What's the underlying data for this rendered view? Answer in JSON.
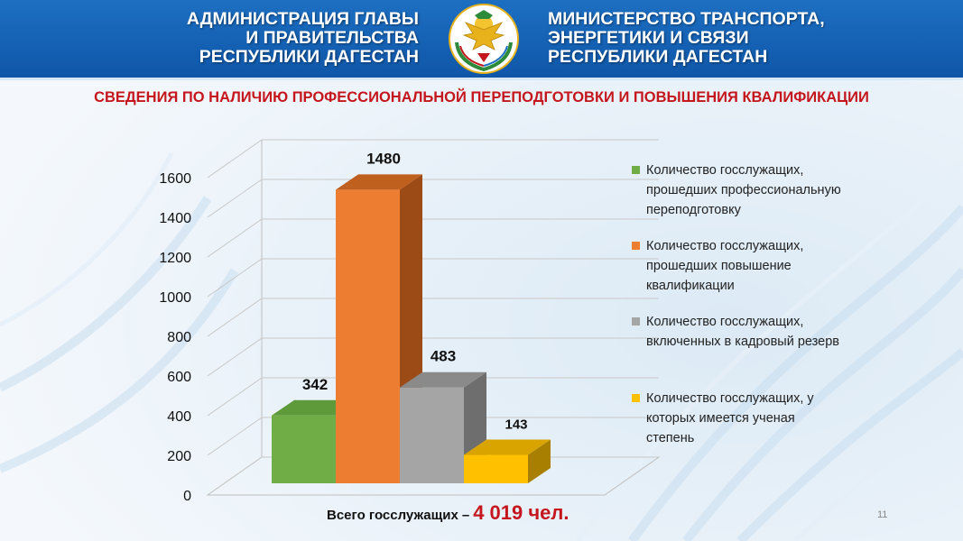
{
  "header": {
    "left_lines": [
      "АДМИНИСТРАЦИЯ ГЛАВЫ",
      "И ПРАВИТЕЛЬСТВА",
      "РЕСПУБЛИКИ ДАГЕСТАН"
    ],
    "right_lines": [
      "МИНИСТЕРСТВО ТРАНСПОРТА,",
      "ЭНЕРГЕТИКИ И СВЯЗИ",
      "РЕСПУБЛИКИ ДАГЕСТАН"
    ],
    "emblem_icon": "dagestan-coat-of-arms-icon"
  },
  "subtitle": "СВЕДЕНИЯ ПО НАЛИЧИЮ ПРОФЕССИОНАЛЬНОЙ ПЕРЕПОДГОТОВКИ И ПОВЫШЕНИЯ КВАЛИФИКАЦИИ",
  "chart_data": {
    "type": "bar",
    "style": "3d-column",
    "title": "",
    "xlabel": "",
    "ylabel": "",
    "ylim": [
      0,
      1600
    ],
    "yticks": [
      0,
      200,
      400,
      600,
      800,
      1000,
      1200,
      1400,
      1600
    ],
    "grid": true,
    "legend_position": "right",
    "series": [
      {
        "name": "Количество госслужащих, прошедших профессиональную переподготовку",
        "value": 342,
        "label": "342",
        "color": "#70ad47",
        "side_color": "#4e7e31",
        "top_color": "#5e9a3a"
      },
      {
        "name": "Количество госслужащих, прошедших повышение квалификации",
        "value": 1480,
        "label": "1480",
        "color": "#ed7d31",
        "side_color": "#9c4a16",
        "top_color": "#c0601f"
      },
      {
        "name": "Количество госслужащих, включенных в кадровый резерв",
        "value": 483,
        "label": "483",
        "color": "#a5a5a5",
        "side_color": "#6e6e6e",
        "top_color": "#8a8a8a"
      },
      {
        "name": "Количество  госслужащих, у которых имеется  ученая степень",
        "value": 143,
        "label": "143",
        "color": "#ffc000",
        "side_color": "#a87f00",
        "top_color": "#d9a300"
      }
    ]
  },
  "legend": {
    "items": [
      {
        "lines": [
          "Количество госслужащих,",
          "прошедших профессиональную",
          "переподготовку"
        ]
      },
      {
        "lines": [
          "Количество госслужащих,",
          "прошедших повышение",
          "квалификации"
        ]
      },
      {
        "lines": [
          "Количество госслужащих,",
          "включенных в кадровый резерв"
        ]
      },
      {
        "lines": [
          "Количество  госслужащих, у",
          "которых имеется  ученая",
          "степень"
        ]
      }
    ]
  },
  "total": {
    "label": "Всего госслужащих",
    "dash": "–",
    "value": "4 019 чел."
  },
  "page_number": "11"
}
